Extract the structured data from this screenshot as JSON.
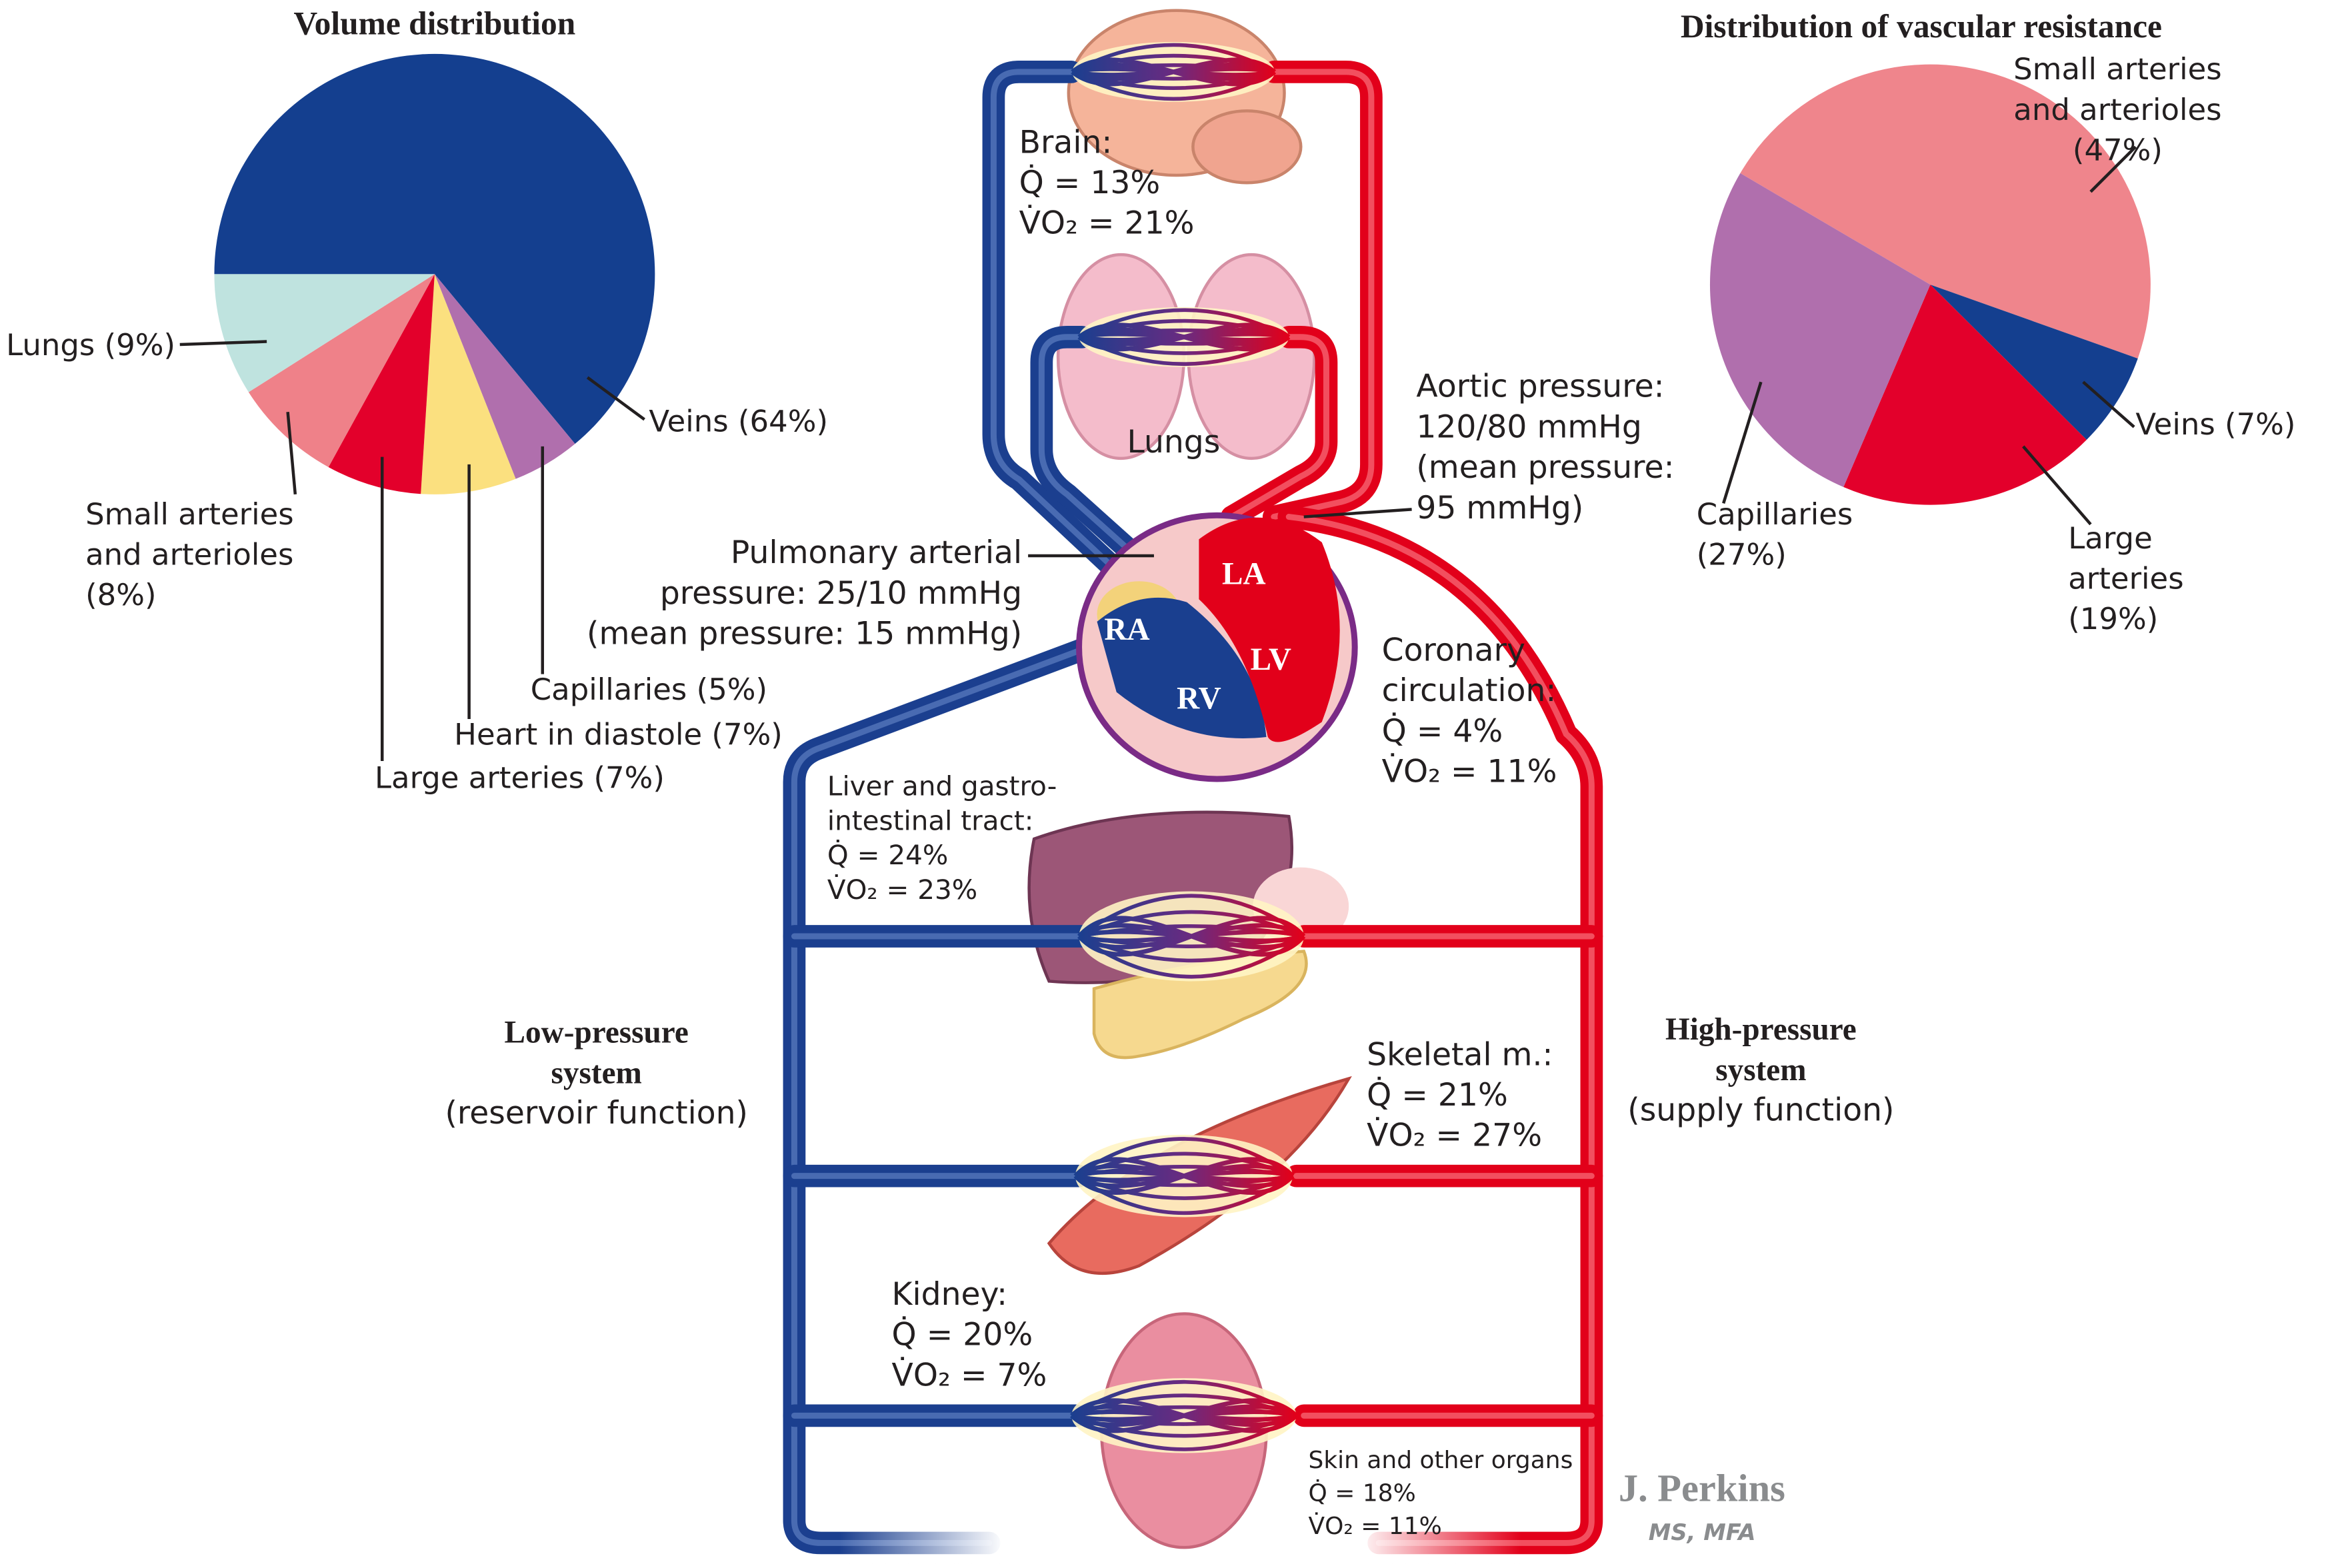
{
  "chart_data": [
    {
      "type": "pie",
      "title": "Volume distribution",
      "categories": [
        "Veins (64%)",
        "Capillaries (5%)",
        "Heart in diastole (7%)",
        "Large arteries (7%)",
        "Small arteries and arterioles (8%)",
        "Lungs (9%)"
      ],
      "values": [
        64,
        5,
        7,
        7,
        8,
        9
      ],
      "colors": [
        "#143f8f",
        "#b06fad",
        "#fbe07f",
        "#e3002b",
        "#ef8189",
        "#bfe3df"
      ]
    },
    {
      "type": "pie",
      "title": "Distribution of vascular resistance",
      "categories": [
        "Small arteries and arterioles (47%)",
        "Veins (7%)",
        "Large arteries (19%)",
        "Capillaries (27%)"
      ],
      "values": [
        47,
        7,
        19,
        27
      ],
      "colors": [
        "#ef858c",
        "#143f8f",
        "#e3002b",
        "#b06fad"
      ]
    }
  ],
  "diagram": {
    "brain": [
      "Brain:",
      "Q̇ = 13%",
      "V̇O₂ = 21%"
    ],
    "lungs": "Lungs",
    "pulmonary": [
      "Pulmonary arterial",
      "pressure: 25/10 mmHg",
      "(mean pressure: 15 mmHg)"
    ],
    "aortic": [
      "Aortic pressure:",
      "120/80 mmHg",
      "(mean pressure:",
      "95 mmHg)"
    ],
    "chambers": [
      "LA",
      "LV",
      "RA",
      "RV"
    ],
    "coronary": [
      "Coronary",
      "circulation:",
      "Q̇ = 4%",
      "V̇O₂ = 11%"
    ],
    "liver": [
      "Liver and gastro-",
      "intestinal tract:",
      "Q̇ = 24%",
      "V̇O₂ = 23%"
    ],
    "skeletal": [
      "Skeletal m.:",
      "Q̇ = 21%",
      "V̇O₂ = 27%"
    ],
    "kidney": [
      "Kidney:",
      "Q̇ = 20%",
      "V̇O₂ = 7%"
    ],
    "skin": [
      "Skin and other organs",
      "Q̇ = 18%",
      "V̇O₂ = 11%"
    ],
    "low_pressure": {
      "title": [
        "Low-pressure",
        "system"
      ],
      "subtitle": "(reservoir function)"
    },
    "high_pressure": {
      "title": [
        "High-pressure",
        "system"
      ],
      "subtitle": "(supply function)"
    },
    "signature": {
      "name": "J. Perkins",
      "credentials": "MS, MFA"
    }
  }
}
